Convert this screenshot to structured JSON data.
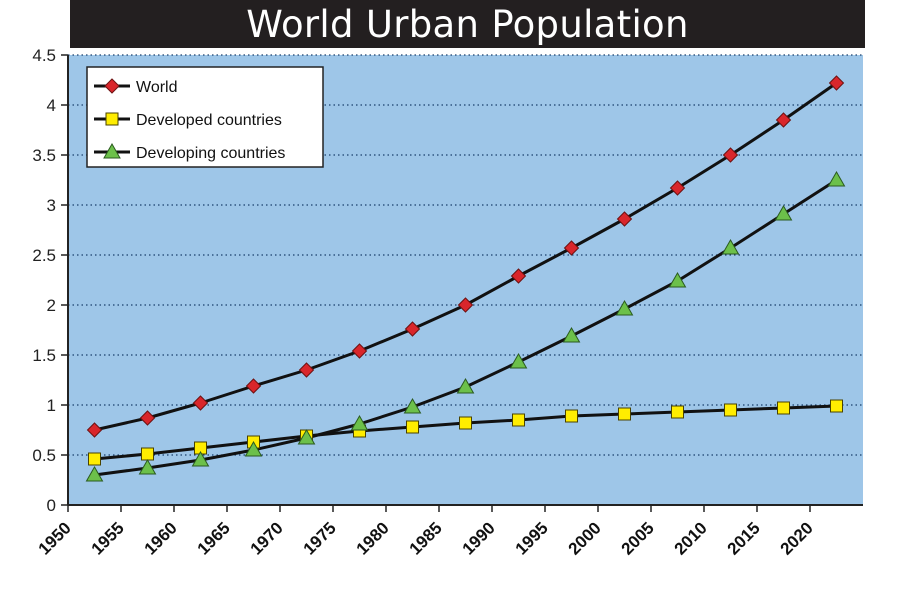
{
  "header": {
    "title": "World Urban Population"
  },
  "colors": {
    "plot_background": "#9ec6e8",
    "line": "#111111",
    "world_marker": "#d9262b",
    "developed_marker": "#ffed00",
    "developing_marker": "#6cc04a",
    "gridline": "#1a3f6b"
  },
  "chart_data": {
    "type": "line",
    "title": "World Urban Population",
    "xlabel": "",
    "ylabel": "",
    "ylim": [
      0,
      4.5
    ],
    "yticks": [
      "0",
      "0.5",
      "1",
      "1.5",
      "2",
      "2.5",
      "3",
      "3.5",
      "4",
      "4.5"
    ],
    "xticks": [
      "1950",
      "1955",
      "1960",
      "1965",
      "1970",
      "1975",
      "1980",
      "1985",
      "1990",
      "1995",
      "2000",
      "2005",
      "2010",
      "2015",
      "2020"
    ],
    "grid": "horizontal dotted",
    "legend_position": "top-left",
    "x": [
      1952.5,
      1957.5,
      1962.5,
      1967.5,
      1972.5,
      1977.5,
      1982.5,
      1987.5,
      1992.5,
      1997.5,
      2002.5,
      2007.5,
      2012.5,
      2017.5,
      2022.5
    ],
    "series": [
      {
        "name": "World",
        "marker": "diamond",
        "values": [
          0.75,
          0.87,
          1.02,
          1.19,
          1.35,
          1.54,
          1.76,
          2.0,
          2.29,
          2.57,
          2.86,
          3.17,
          3.5,
          3.85,
          4.22
        ]
      },
      {
        "name": "Developed countries",
        "marker": "square",
        "values": [
          0.46,
          0.51,
          0.57,
          0.63,
          0.69,
          0.74,
          0.78,
          0.82,
          0.85,
          0.89,
          0.91,
          0.93,
          0.95,
          0.97,
          0.99
        ]
      },
      {
        "name": "Developing countries",
        "marker": "triangle",
        "values": [
          0.3,
          0.37,
          0.45,
          0.55,
          0.67,
          0.81,
          0.98,
          1.18,
          1.43,
          1.69,
          1.96,
          2.24,
          2.57,
          2.91,
          3.25
        ]
      }
    ]
  }
}
